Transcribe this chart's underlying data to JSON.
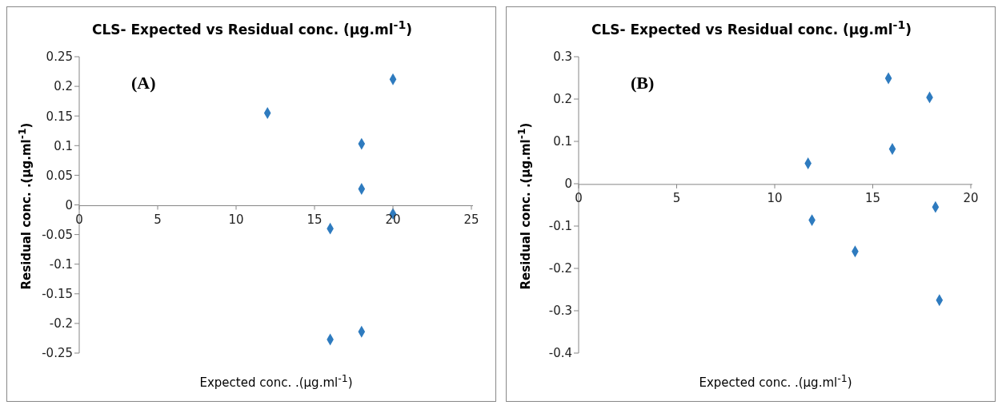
{
  "chart_data": [
    {
      "type": "scatter",
      "title": "CLS- Expected vs Residual conc. (µg.ml$^{-1}$)",
      "xlabel": "Expected conc. .(µg.ml$^{-1}$)",
      "ylabel": "Residual conc.  .(µg.ml$^{-1}$)",
      "annotations": [
        "(A)"
      ],
      "marker": "diamond",
      "grid": false,
      "legend": false,
      "x": [
        12,
        16,
        16,
        18,
        18,
        18,
        20,
        20
      ],
      "series": [
        {
          "color": "#2e7bbf",
          "values": [
            0.155,
            -0.04,
            -0.227,
            0.103,
            0.027,
            -0.214,
            0.212,
            -0.015
          ]
        }
      ],
      "xlim": [
        0,
        25
      ],
      "xticks": [
        0,
        5,
        10,
        15,
        20,
        25
      ],
      "ylim": [
        -0.25,
        0.25
      ],
      "yticks": [
        -0.25,
        -0.2,
        -0.15,
        -0.1,
        -0.05,
        0,
        0.05,
        0.1,
        0.15,
        0.2,
        0.25
      ]
    },
    {
      "type": "scatter",
      "title": "CLS- Expected vs Residual conc. (µg.ml$^{-1}$)",
      "xlabel": "Expected conc. .(µg.ml$^{-1}$)",
      "ylabel": "Residual conc.  .(µg.ml$^{-1}$)",
      "annotations": [
        "(B)"
      ],
      "marker": "diamond",
      "grid": false,
      "legend": false,
      "x": [
        11.7,
        11.9,
        14.1,
        15.8,
        16,
        17.9,
        18.2,
        18.4
      ],
      "series": [
        {
          "color": "#2e7bbf",
          "values": [
            0.048,
            -0.086,
            -0.16,
            0.249,
            0.082,
            0.204,
            -0.055,
            -0.275
          ]
        }
      ],
      "xlim": [
        0,
        20
      ],
      "xticks": [
        0,
        5,
        10,
        15,
        20
      ],
      "ylim": [
        -0.4,
        0.3
      ],
      "yticks": [
        -0.4,
        -0.3,
        -0.2,
        -0.1,
        0,
        0.1,
        0.2,
        0.3
      ]
    }
  ]
}
